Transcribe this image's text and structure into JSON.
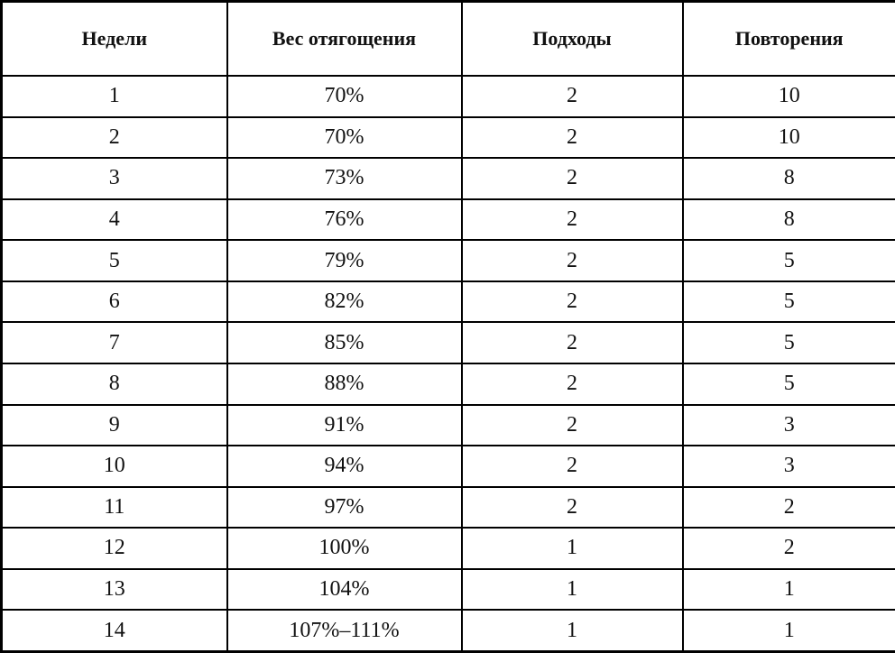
{
  "table": {
    "headers": [
      "Недели",
      "Вес отягощения",
      "Подходы",
      "Повторения"
    ],
    "rows": [
      [
        "1",
        "70%",
        "2",
        "10"
      ],
      [
        "2",
        "70%",
        "2",
        "10"
      ],
      [
        "3",
        "73%",
        "2",
        "8"
      ],
      [
        "4",
        "76%",
        "2",
        "8"
      ],
      [
        "5",
        "79%",
        "2",
        "5"
      ],
      [
        "6",
        "82%",
        "2",
        "5"
      ],
      [
        "7",
        "85%",
        "2",
        "5"
      ],
      [
        "8",
        "88%",
        "2",
        "5"
      ],
      [
        "9",
        "91%",
        "2",
        "3"
      ],
      [
        "10",
        "94%",
        "2",
        "3"
      ],
      [
        "11",
        "97%",
        "2",
        "2"
      ],
      [
        "12",
        "100%",
        "1",
        "2"
      ],
      [
        "13",
        "104%",
        "1",
        "1"
      ],
      [
        "14",
        "107%–111%",
        "1",
        "1"
      ]
    ]
  }
}
